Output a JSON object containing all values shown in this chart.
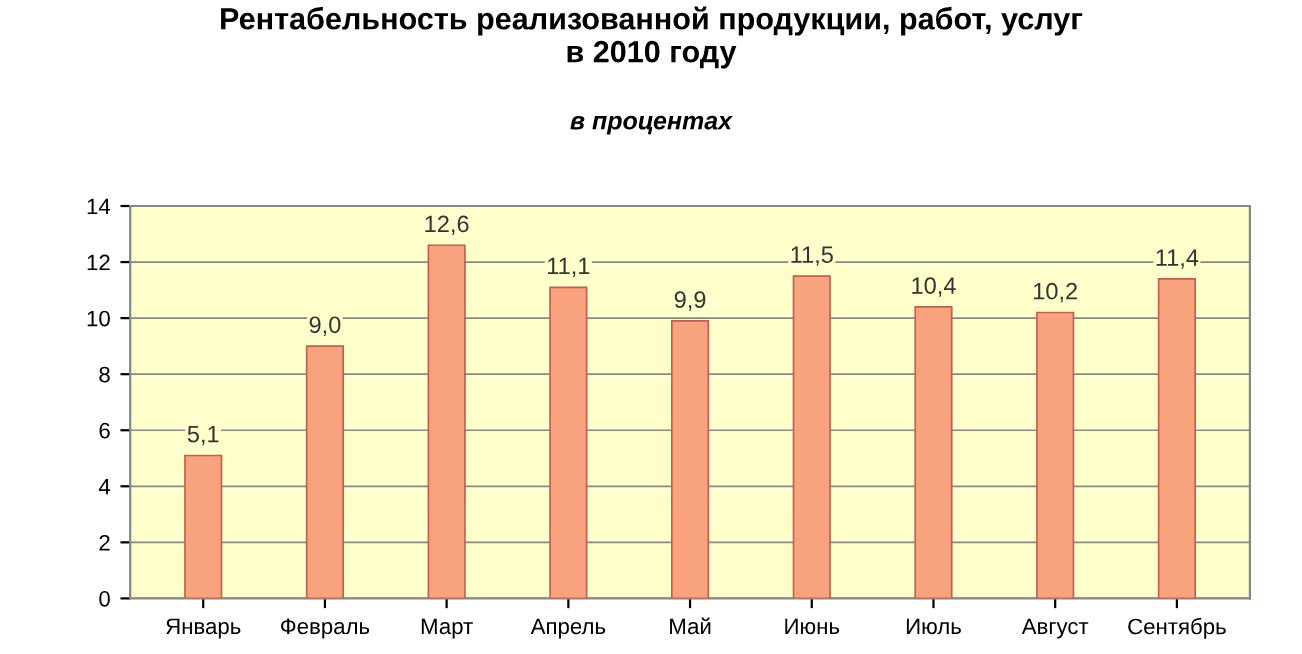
{
  "chart_data": {
    "type": "bar",
    "title": "Рентабельность реализованной продукции, работ, услуг\nв 2010 году",
    "subtitle": "в процентах",
    "categories": [
      "Январь",
      "Февраль",
      "Март",
      "Апрель",
      "Май",
      "Июнь",
      "Июль",
      "Август",
      "Сентябрь"
    ],
    "values": [
      5.1,
      9.0,
      12.6,
      11.1,
      9.9,
      11.5,
      10.4,
      10.2,
      11.4
    ],
    "value_labels": [
      "5,1",
      "9,0",
      "12,6",
      "11,1",
      "9,9",
      "11,5",
      "10,4",
      "10,2",
      "11,4"
    ],
    "color": "#f9a27e",
    "ylim": [
      0,
      14
    ],
    "yticks": [
      0,
      2,
      4,
      6,
      8,
      10,
      12,
      14
    ],
    "grid": "y",
    "legend": false
  }
}
